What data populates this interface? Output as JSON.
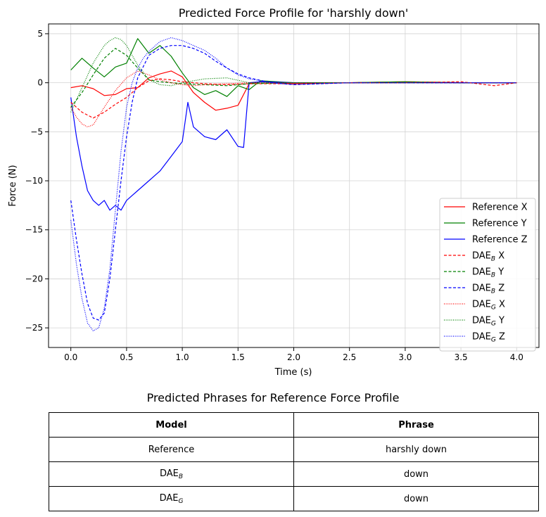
{
  "chart_data": {
    "type": "line",
    "title": "Predicted Force Profile for 'harshly down'",
    "xlabel": "Time (s)",
    "ylabel": "Force (N)",
    "xlim": [
      -0.2,
      4.2
    ],
    "ylim": [
      -27,
      6
    ],
    "xticks": [
      0.0,
      0.5,
      1.0,
      1.5,
      2.0,
      2.5,
      3.0,
      3.5,
      4.0
    ],
    "xtick_labels": [
      "0.0",
      "0.5",
      "1.0",
      "1.5",
      "2.0",
      "2.5",
      "3.0",
      "3.5",
      "4.0"
    ],
    "yticks": [
      -25,
      -20,
      -15,
      -10,
      -5,
      0,
      5
    ],
    "ytick_labels": [
      "−25",
      "−20",
      "−15",
      "−10",
      "−5",
      "0",
      "5"
    ],
    "grid": true,
    "legend_position": "lower-right",
    "colors": {
      "x": "#ff0000",
      "y": "#008000",
      "z": "#0000ff"
    },
    "series": [
      {
        "name": "Reference X",
        "base": "Reference",
        "sub": "",
        "axis": "X",
        "color": "#ff0000",
        "style": "solid",
        "x": [
          0,
          0.1,
          0.2,
          0.3,
          0.4,
          0.5,
          0.6,
          0.7,
          0.8,
          0.9,
          1.0,
          1.1,
          1.2,
          1.3,
          1.4,
          1.5,
          1.6,
          1.7,
          2.0,
          2.5,
          3.0,
          3.5,
          4.0
        ],
        "y": [
          -0.5,
          -0.3,
          -0.6,
          -1.3,
          -1.2,
          -0.6,
          -0.5,
          0.5,
          0.9,
          1.2,
          0.6,
          -1.0,
          -2.0,
          -2.8,
          -2.6,
          -2.3,
          -0.1,
          0.1,
          -0.1,
          0.0,
          0.1,
          0.0,
          0.0
        ]
      },
      {
        "name": "Reference Y",
        "base": "Reference",
        "sub": "",
        "axis": "Y",
        "color": "#008000",
        "style": "solid",
        "x": [
          0,
          0.1,
          0.2,
          0.3,
          0.4,
          0.5,
          0.6,
          0.7,
          0.8,
          0.9,
          1.0,
          1.1,
          1.2,
          1.3,
          1.4,
          1.5,
          1.6,
          1.7,
          2.0,
          2.5,
          3.0,
          3.5,
          4.0
        ],
        "y": [
          1.3,
          2.5,
          1.5,
          0.6,
          1.6,
          2.0,
          4.5,
          3.0,
          3.8,
          2.7,
          1.0,
          -0.5,
          -1.2,
          -0.8,
          -1.4,
          -0.3,
          -0.7,
          0.2,
          0.0,
          0.0,
          0.1,
          0.0,
          0.0
        ]
      },
      {
        "name": "Reference Z",
        "base": "Reference",
        "sub": "",
        "axis": "Z",
        "color": "#0000ff",
        "style": "solid",
        "x": [
          0,
          0.05,
          0.1,
          0.15,
          0.2,
          0.25,
          0.3,
          0.35,
          0.4,
          0.45,
          0.5,
          0.55,
          0.6,
          0.7,
          0.8,
          0.9,
          1.0,
          1.05,
          1.1,
          1.2,
          1.3,
          1.4,
          1.5,
          1.55,
          1.6,
          1.7,
          2.0,
          2.5,
          3.0,
          3.5,
          4.0
        ],
        "y": [
          -1.5,
          -5.5,
          -8.5,
          -11.0,
          -12.0,
          -12.5,
          -12.0,
          -13.0,
          -12.5,
          -13.0,
          -12.0,
          -11.5,
          -11.0,
          -10.0,
          -9.0,
          -7.5,
          -6.0,
          -2.0,
          -4.5,
          -5.5,
          -5.8,
          -4.8,
          -6.5,
          -6.6,
          0.0,
          0.1,
          0.0,
          0.0,
          0.0,
          0.0,
          0.0
        ]
      },
      {
        "name": "DAE_B X",
        "base": "DAE",
        "sub": "B",
        "axis": "X",
        "color": "#ff0000",
        "style": "dashed",
        "x": [
          0,
          0.1,
          0.2,
          0.3,
          0.4,
          0.5,
          0.6,
          0.7,
          0.8,
          0.9,
          1.0,
          1.1,
          1.2,
          1.4,
          1.6,
          2.0,
          2.5,
          3.0,
          3.5,
          3.8,
          4.0
        ],
        "y": [
          -2.0,
          -3.0,
          -3.6,
          -3.0,
          -2.2,
          -1.5,
          -0.5,
          0.2,
          0.4,
          0.3,
          0.1,
          0.0,
          -0.1,
          -0.2,
          -0.1,
          -0.1,
          0.0,
          0.0,
          0.1,
          -0.3,
          0.0
        ]
      },
      {
        "name": "DAE_B Y",
        "base": "DAE",
        "sub": "B",
        "axis": "Y",
        "color": "#008000",
        "style": "dashed",
        "x": [
          0,
          0.1,
          0.2,
          0.3,
          0.4,
          0.5,
          0.6,
          0.7,
          0.8,
          0.9,
          1.0,
          1.2,
          1.4,
          1.6,
          2.0,
          2.5,
          3.0,
          3.5,
          4.0
        ],
        "y": [
          -2.5,
          -1.0,
          0.8,
          2.5,
          3.5,
          2.8,
          1.5,
          0.3,
          0.1,
          0.0,
          -0.1,
          -0.2,
          -0.3,
          -0.1,
          0.0,
          0.0,
          0.0,
          0.0,
          0.0
        ]
      },
      {
        "name": "DAE_B Z",
        "base": "DAE",
        "sub": "B",
        "axis": "Z",
        "color": "#0000ff",
        "style": "dashed",
        "x": [
          0,
          0.05,
          0.1,
          0.15,
          0.2,
          0.25,
          0.3,
          0.35,
          0.4,
          0.45,
          0.5,
          0.55,
          0.6,
          0.7,
          0.8,
          0.9,
          1.0,
          1.1,
          1.2,
          1.3,
          1.4,
          1.5,
          1.6,
          1.8,
          2.0,
          2.5,
          3.0,
          3.5,
          4.0
        ],
        "y": [
          -12.0,
          -16.0,
          -19.5,
          -22.5,
          -24.0,
          -24.2,
          -23.5,
          -20.0,
          -15.0,
          -10.0,
          -5.5,
          -2.0,
          0.5,
          2.8,
          3.5,
          3.8,
          3.8,
          3.5,
          3.0,
          2.2,
          1.5,
          0.9,
          0.5,
          0.0,
          -0.2,
          0.0,
          0.0,
          0.0,
          0.0
        ]
      },
      {
        "name": "DAE_G X",
        "base": "DAE",
        "sub": "G",
        "axis": "X",
        "color": "#ff0000",
        "style": "dotted",
        "x": [
          0,
          0.05,
          0.1,
          0.15,
          0.2,
          0.3,
          0.4,
          0.5,
          0.6,
          0.7,
          0.8,
          0.9,
          1.0,
          1.1,
          1.2,
          1.4,
          1.6,
          2.0,
          2.5,
          3.0,
          3.5,
          4.0
        ],
        "y": [
          -2.5,
          -3.5,
          -4.2,
          -4.5,
          -4.3,
          -2.5,
          -0.8,
          0.5,
          1.2,
          0.8,
          0.3,
          0.0,
          -0.2,
          -0.3,
          -0.2,
          -0.1,
          0.0,
          0.0,
          0.0,
          0.0,
          0.0,
          0.0
        ]
      },
      {
        "name": "DAE_G Y",
        "base": "DAE",
        "sub": "G",
        "axis": "Y",
        "color": "#008000",
        "style": "dotted",
        "x": [
          0,
          0.1,
          0.2,
          0.3,
          0.35,
          0.4,
          0.45,
          0.5,
          0.6,
          0.7,
          0.8,
          0.9,
          1.0,
          1.2,
          1.4,
          1.6,
          2.0,
          2.5,
          3.0,
          3.5,
          4.0
        ],
        "y": [
          -3.0,
          -0.5,
          2.0,
          3.8,
          4.3,
          4.6,
          4.4,
          3.8,
          1.8,
          0.3,
          -0.2,
          -0.3,
          0.0,
          0.4,
          0.5,
          0.0,
          0.0,
          0.0,
          0.0,
          0.0,
          0.0
        ]
      },
      {
        "name": "DAE_G Z",
        "base": "DAE",
        "sub": "G",
        "axis": "Z",
        "color": "#0000ff",
        "style": "dotted",
        "x": [
          0,
          0.05,
          0.1,
          0.15,
          0.2,
          0.25,
          0.3,
          0.35,
          0.4,
          0.45,
          0.5,
          0.55,
          0.6,
          0.65,
          0.7,
          0.8,
          0.9,
          1.0,
          1.1,
          1.2,
          1.3,
          1.4,
          1.5,
          1.6,
          1.8,
          2.0,
          2.5,
          3.0,
          3.5,
          4.0
        ],
        "y": [
          -14.0,
          -18.5,
          -22.0,
          -24.5,
          -25.3,
          -25.0,
          -23.0,
          -19.0,
          -13.0,
          -7.0,
          -2.5,
          0.0,
          1.5,
          2.5,
          3.2,
          4.2,
          4.6,
          4.3,
          3.8,
          3.3,
          2.5,
          1.5,
          0.8,
          0.4,
          0.0,
          -0.2,
          0.0,
          0.0,
          0.0,
          0.0
        ]
      }
    ]
  },
  "table": {
    "title": "Predicted Phrases for Reference Force Profile",
    "headers": [
      "Model",
      "Phrase"
    ],
    "rows": [
      {
        "model": "Reference",
        "sub": "",
        "phrase": "harshly down"
      },
      {
        "model": "DAE",
        "sub": "B",
        "phrase": "down"
      },
      {
        "model": "DAE",
        "sub": "G",
        "phrase": "down"
      }
    ]
  }
}
